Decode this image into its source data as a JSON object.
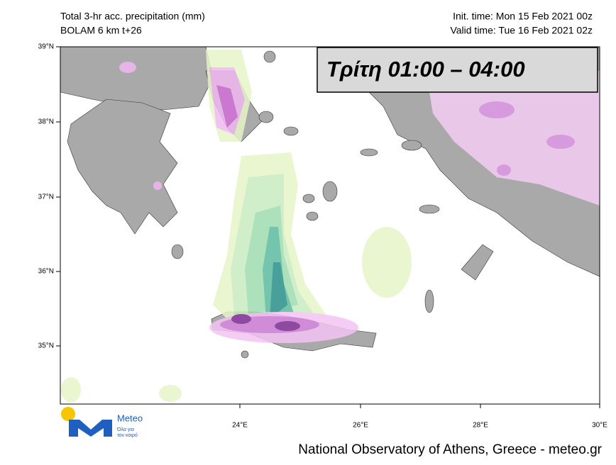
{
  "header": {
    "title": "Total 3-hr acc. precipitation (mm)",
    "model": "BOLAM 6 km t+26",
    "init_time": "Init. time: Mon 15 Feb 2021 00z",
    "valid_time": "Valid time: Tue 16 Feb 2021 02z"
  },
  "overlay": {
    "label": "Τρίτη 01:00 – 04:00"
  },
  "map": {
    "lat_labels": [
      "39°N",
      "38°N",
      "37°N",
      "36°N",
      "35°N"
    ],
    "lon_labels": [
      "24°E",
      "26°E",
      "28°E",
      "30°E"
    ]
  },
  "logo": {
    "name": "Meteo",
    "tagline_1": "Όλα για",
    "tagline_2": "τον καιρό"
  },
  "footer": {
    "credit": "National Observatory of Athens, Greece - meteo.gr"
  }
}
